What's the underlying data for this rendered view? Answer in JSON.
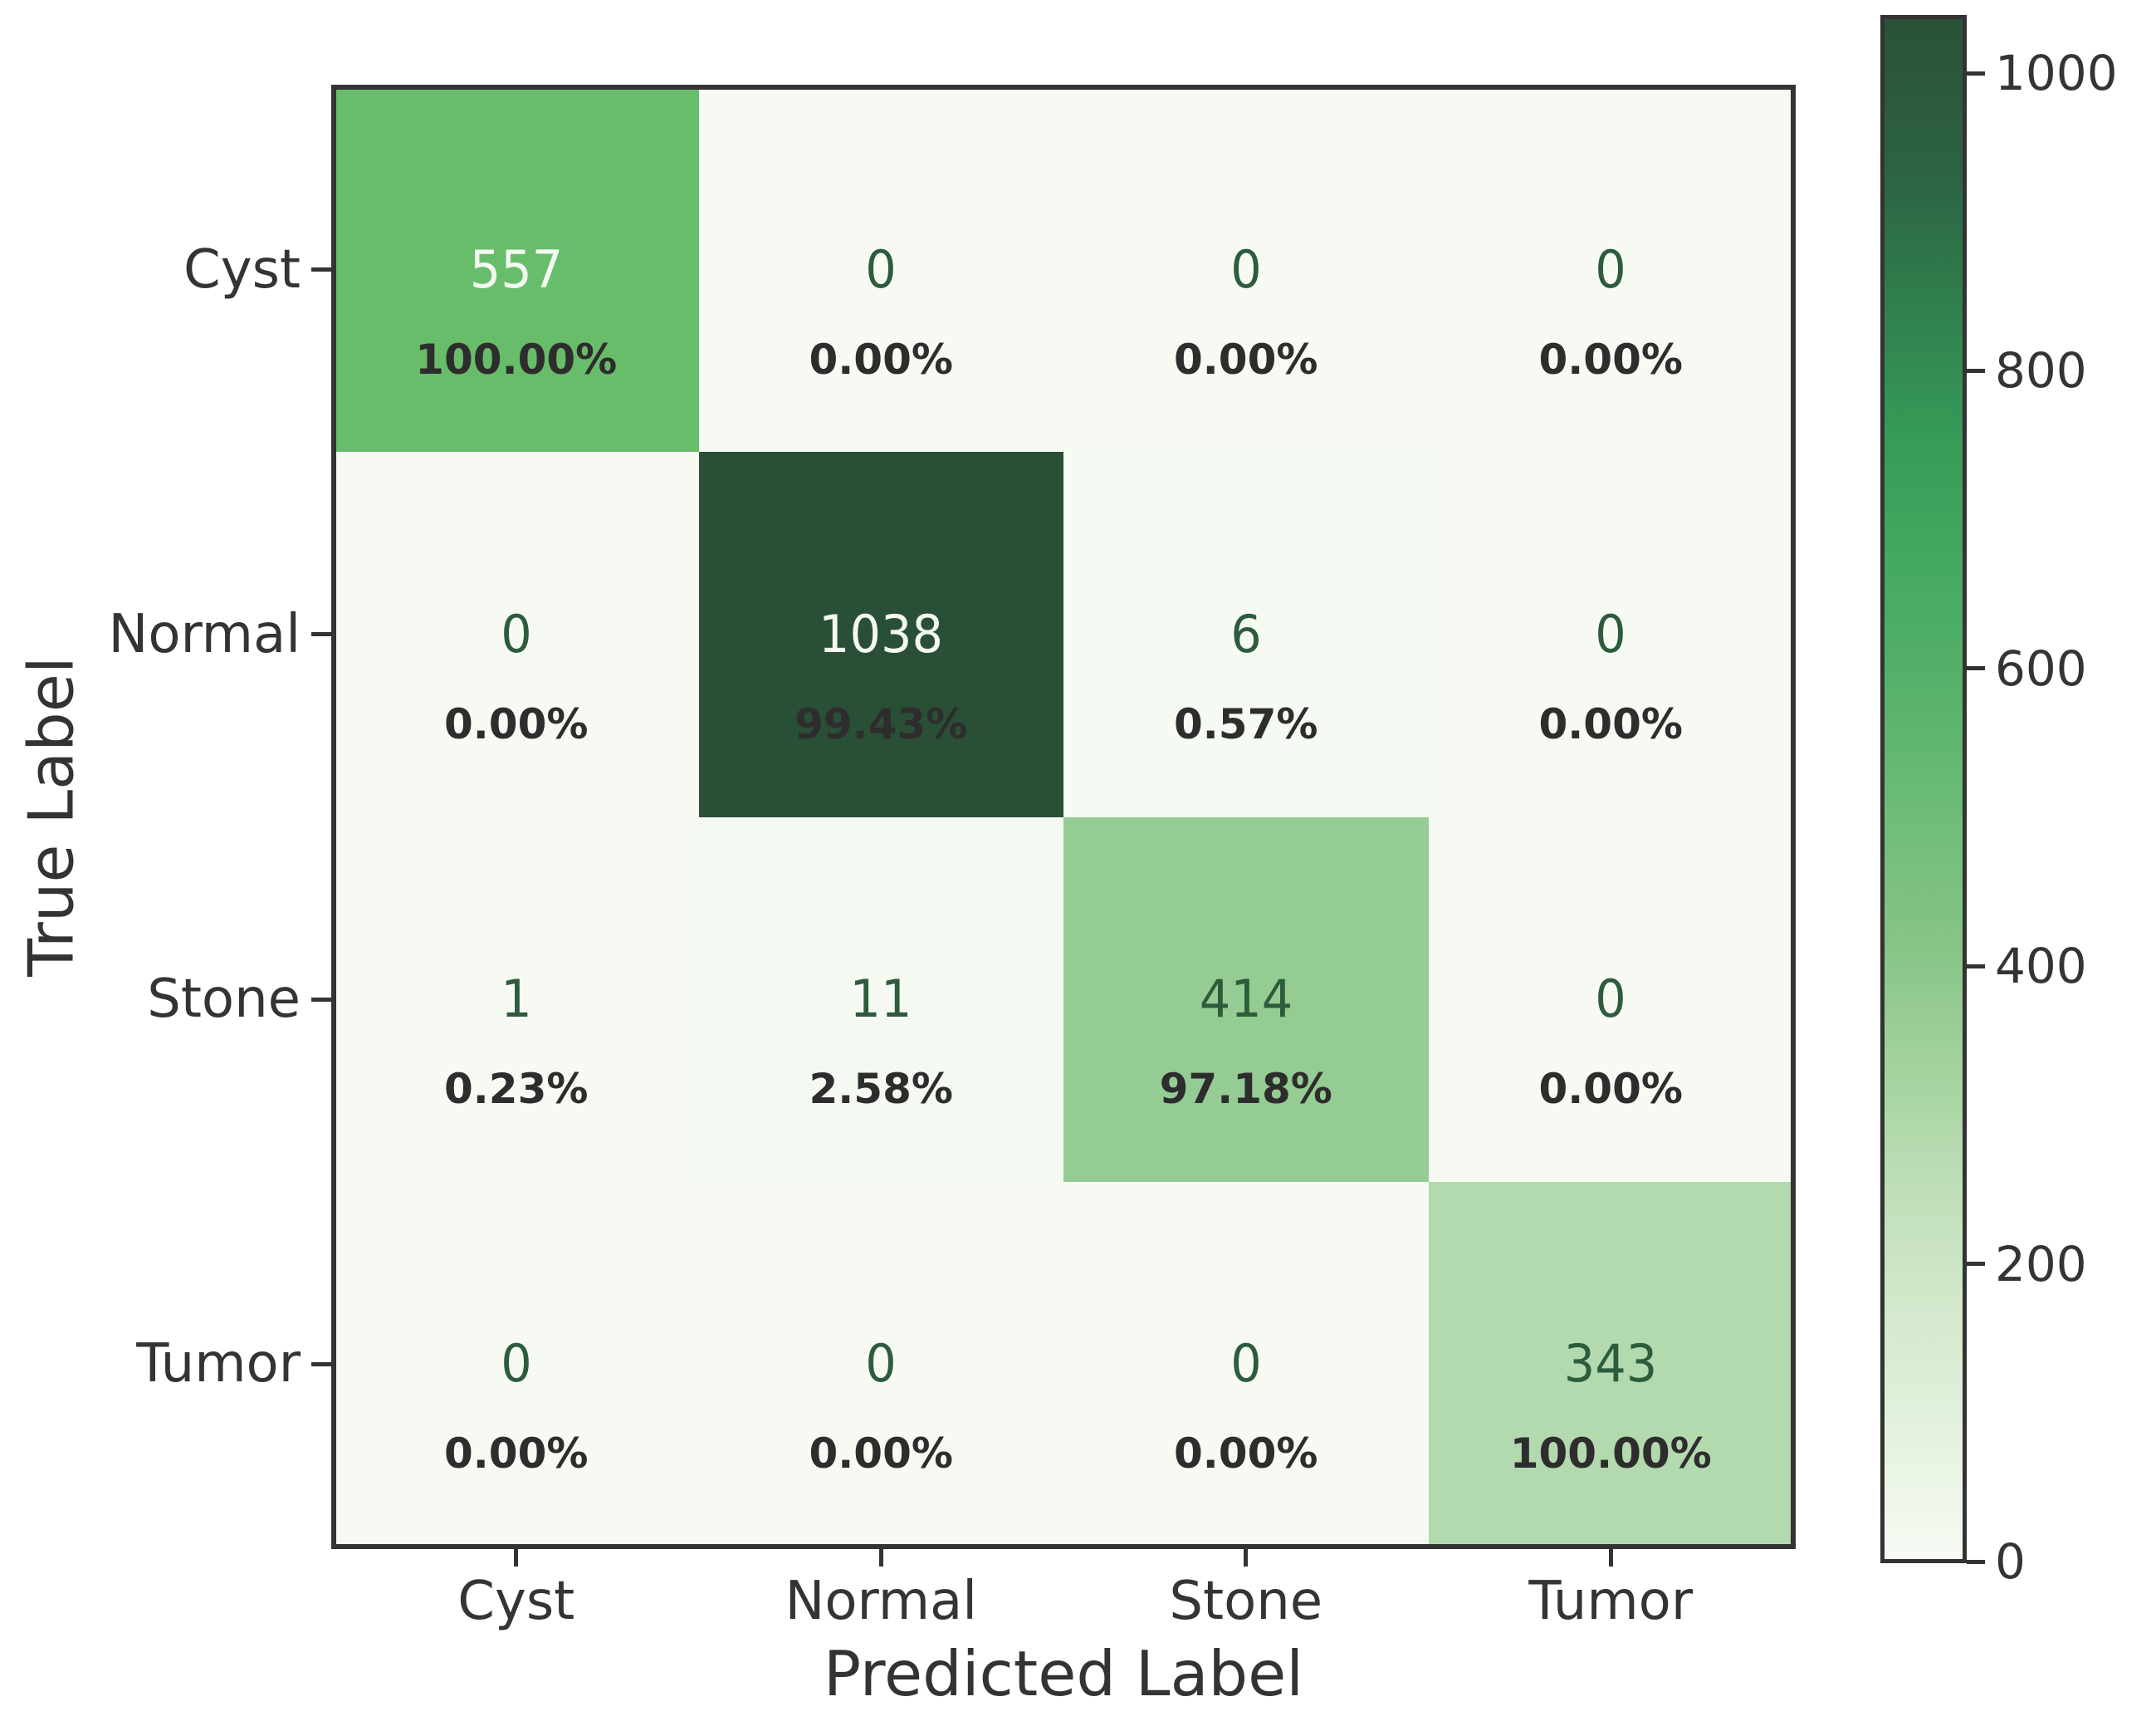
{
  "figure_bg": "#ffffff",
  "border_color": "#333333",
  "text_color": "#343434",
  "pct_text_color": "#2e2d2d",
  "x_axis": {
    "label": "Predicted Label",
    "tick_labels": [
      "Cyst",
      "Normal",
      "Stone",
      "Tumor"
    ]
  },
  "y_axis": {
    "label": "True Label",
    "tick_labels": [
      "Cyst",
      "Normal",
      "Stone",
      "Tumor"
    ]
  },
  "cells": [
    [
      {
        "count": "557",
        "pct": "100.00%",
        "bg": "#68bd6b",
        "fg": "#f4f9f1"
      },
      {
        "count": "0",
        "pct": "0.00%",
        "bg": "#f6faf3",
        "fg": "#2d5c3d"
      },
      {
        "count": "0",
        "pct": "0.00%",
        "bg": "#f6faf3",
        "fg": "#2d5c3d"
      },
      {
        "count": "0",
        "pct": "0.00%",
        "bg": "#f6faf3",
        "fg": "#2d5c3d"
      }
    ],
    [
      {
        "count": "0",
        "pct": "0.00%",
        "bg": "#f6faf3",
        "fg": "#2d5c3d"
      },
      {
        "count": "1038",
        "pct": "99.43%",
        "bg": "#2a4f37",
        "fg": "#f4f9f1"
      },
      {
        "count": "6",
        "pct": "0.57%",
        "bg": "#f5faf2",
        "fg": "#2d5c3d"
      },
      {
        "count": "0",
        "pct": "0.00%",
        "bg": "#f6faf3",
        "fg": "#2d5c3d"
      }
    ],
    [
      {
        "count": "1",
        "pct": "0.23%",
        "bg": "#f6faf3",
        "fg": "#2d5c3d"
      },
      {
        "count": "11",
        "pct": "2.58%",
        "bg": "#f4f9f1",
        "fg": "#2d5c3d"
      },
      {
        "count": "414",
        "pct": "97.18%",
        "bg": "#95cc94",
        "fg": "#2d5c3d"
      },
      {
        "count": "0",
        "pct": "0.00%",
        "bg": "#f6faf3",
        "fg": "#2d5c3d"
      }
    ],
    [
      {
        "count": "0",
        "pct": "0.00%",
        "bg": "#f6faf3",
        "fg": "#2d5c3d"
      },
      {
        "count": "0",
        "pct": "0.00%",
        "bg": "#f6faf3",
        "fg": "#2d5c3d"
      },
      {
        "count": "0",
        "pct": "0.00%",
        "bg": "#f6faf3",
        "fg": "#2d5c3d"
      },
      {
        "count": "343",
        "pct": "100.00%",
        "bg": "#b3d9ae",
        "fg": "#2d5c3d"
      }
    ]
  ],
  "colorbar": {
    "vmin": 0,
    "vmax": 1038,
    "tick_labels": [
      "0",
      "200",
      "400",
      "600",
      "800",
      "1000"
    ],
    "tick_values": [
      0,
      200,
      400,
      600,
      800,
      1000
    ],
    "top_color": "#2b5138",
    "bottom_color": "#f7fbf4"
  },
  "chart_data": {
    "type": "heatmap",
    "subtype": "confusion-matrix",
    "xlabel": "Predicted Label",
    "ylabel": "True Label",
    "x_categories": [
      "Cyst",
      "Normal",
      "Stone",
      "Tumor"
    ],
    "y_categories": [
      "Cyst",
      "Normal",
      "Stone",
      "Tumor"
    ],
    "values": [
      [
        557,
        0,
        0,
        0
      ],
      [
        0,
        1038,
        6,
        0
      ],
      [
        1,
        11,
        414,
        0
      ],
      [
        0,
        0,
        0,
        343
      ]
    ],
    "row_percentages": [
      [
        100.0,
        0.0,
        0.0,
        0.0
      ],
      [
        0.0,
        99.43,
        0.57,
        0.0
      ],
      [
        0.23,
        2.58,
        97.18,
        0.0
      ],
      [
        0.0,
        0.0,
        0.0,
        100.0
      ]
    ],
    "colormap": "Greens",
    "vmin": 0,
    "vmax": 1038,
    "colorbar_ticks": [
      0,
      200,
      400,
      600,
      800,
      1000
    ],
    "colorbar_position": "right",
    "grid": false,
    "title": ""
  }
}
